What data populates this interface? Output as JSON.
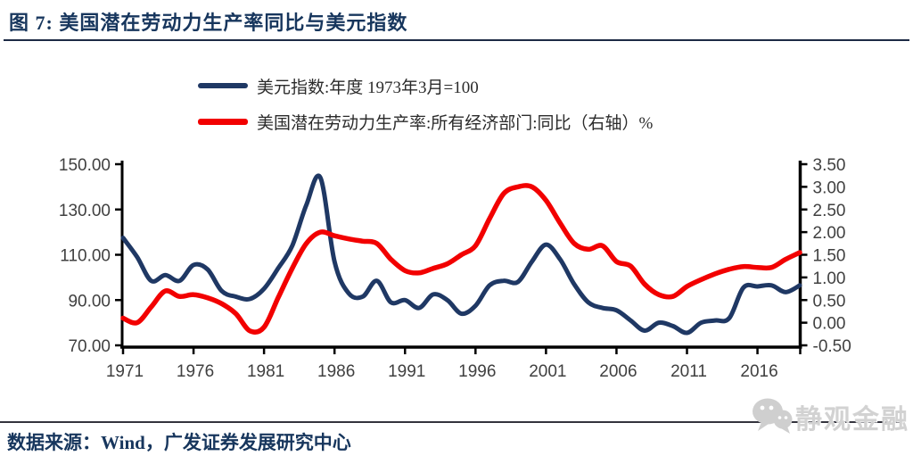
{
  "title": "图 7: 美国潜在劳动力生产率同比与美元指数",
  "source_note": "数据来源：Wind，广发证券发展研究中心",
  "watermark_text": "静观金融",
  "colors": {
    "title_navy": "#17365d",
    "axis_black": "#000000",
    "tick_label_gray": "#404040",
    "watermark_gray": "#d2d2d2"
  },
  "chart_data": {
    "type": "line",
    "title": "美国潜在劳动力生产率同比与美元指数",
    "grid": false,
    "legend_position": "top-center",
    "x": [
      1971,
      1972,
      1973,
      1974,
      1975,
      1976,
      1977,
      1978,
      1979,
      1980,
      1981,
      1982,
      1983,
      1984,
      1985,
      1986,
      1987,
      1988,
      1989,
      1990,
      1991,
      1992,
      1993,
      1994,
      1995,
      1996,
      1997,
      1998,
      1999,
      2000,
      2001,
      2002,
      2003,
      2004,
      2005,
      2006,
      2007,
      2008,
      2009,
      2010,
      2011,
      2012,
      2013,
      2014,
      2015,
      2016,
      2017,
      2018,
      2019
    ],
    "x_axis": {
      "tick_labels": [
        "1971",
        "1976",
        "1981",
        "1986",
        "1991",
        "1996",
        "2001",
        "2006",
        "2011",
        "2016"
      ]
    },
    "left_axis": {
      "min": 70,
      "max": 150,
      "tick_labels": [
        "150.00",
        "130.00",
        "110.00",
        "90.00",
        "70.00"
      ]
    },
    "right_axis": {
      "min": -0.5,
      "max": 3.5,
      "tick_labels": [
        "3.50",
        "3.00",
        "2.50",
        "2.00",
        "1.50",
        "1.00",
        "0.50",
        "0.00",
        "-0.50"
      ]
    },
    "axis_color": "#000000",
    "tick_label_color": "#404040",
    "series": [
      {
        "name": "美元指数:年度 1973年3月=100",
        "axis": "left",
        "color": "#1f3864",
        "line_width": 5,
        "values": [
          117.5,
          109,
          98.5,
          101,
          98.5,
          105.5,
          103.5,
          94,
          91.5,
          90.5,
          95,
          104,
          114,
          132,
          144,
          107,
          93,
          91.5,
          98.5,
          89,
          90,
          86.5,
          92.5,
          90,
          84,
          87.5,
          96.5,
          98.5,
          98,
          107,
          114.5,
          108,
          97,
          89,
          86.5,
          85.5,
          81,
          76.5,
          80,
          78.5,
          75.5,
          80,
          81,
          82,
          95.5,
          96,
          96.5,
          93.5,
          96.5
        ]
      },
      {
        "name": "美国潜在劳动力生产率:所有经济部门:同比（右轴）%",
        "axis": "right",
        "color": "#f20000",
        "line_width": 5.5,
        "values": [
          0.1,
          0.0,
          0.35,
          0.7,
          0.58,
          0.62,
          0.55,
          0.42,
          0.2,
          -0.18,
          -0.1,
          0.55,
          1.2,
          1.75,
          2.0,
          1.92,
          1.85,
          1.8,
          1.75,
          1.4,
          1.15,
          1.1,
          1.2,
          1.3,
          1.5,
          1.7,
          2.3,
          2.85,
          3.0,
          3.0,
          2.7,
          2.2,
          1.75,
          1.62,
          1.7,
          1.35,
          1.25,
          0.85,
          0.62,
          0.58,
          0.8,
          0.95,
          1.08,
          1.18,
          1.24,
          1.22,
          1.22,
          1.4,
          1.55
        ]
      }
    ]
  }
}
